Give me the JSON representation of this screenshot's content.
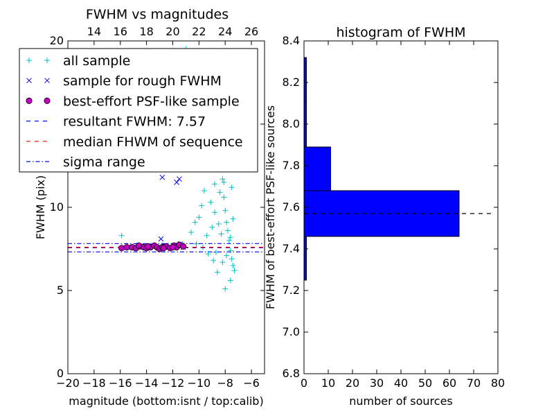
{
  "chart_data": [
    {
      "type": "scatter",
      "title": "FWHM vs magnitudes",
      "xlabel": "magnitude (bottom:isnt / top:calib)",
      "ylabel": "FWHM (pix)",
      "xlim": [
        -20,
        -5
      ],
      "ylim": [
        0,
        20
      ],
      "x_ticks": [
        "−20",
        "−18",
        "−16",
        "−14",
        "−12",
        "−10",
        "−8",
        "−6"
      ],
      "x_tick_values": [
        -20,
        -18,
        -16,
        -14,
        -12,
        -10,
        -8,
        -6
      ],
      "top_ticks": [
        "14",
        "16",
        "18",
        "20",
        "22",
        "24",
        "26"
      ],
      "top_tick_values": [
        14,
        16,
        18,
        20,
        22,
        24,
        26
      ],
      "top_axis_offset": 32,
      "y_ticks": [
        "0",
        "5",
        "10",
        "15",
        "20"
      ],
      "y_tick_values": [
        0,
        5,
        10,
        15,
        20
      ],
      "legend": {
        "placement": "top-left",
        "entries": [
          {
            "label": "all sample",
            "marker": "+",
            "color": "#00bfbf"
          },
          {
            "label": "sample for rough FWHM",
            "marker": "x",
            "color": "#0000ff"
          },
          {
            "label": "best-effort PSF-like sample",
            "marker": "o",
            "color": "#bf00bf"
          },
          {
            "label": "resultant FWHM: 7.57",
            "marker": "dashed",
            "color": "#0000ff"
          },
          {
            "label": "median FHWM of sequence",
            "marker": "dashed",
            "color": "#ff0000"
          },
          {
            "label": "sigma range",
            "marker": "dashdot",
            "color": "#0000ff"
          }
        ]
      },
      "series": [
        {
          "name": "all sample",
          "color": "#00bfbf",
          "points": [
            [
              -15.9,
              8.3
            ],
            [
              -11.2,
              7.7
            ],
            [
              -10.6,
              8.5
            ],
            [
              -10.3,
              9.1
            ],
            [
              -10.0,
              9.4
            ],
            [
              -9.8,
              10.1
            ],
            [
              -9.6,
              11.0
            ],
            [
              -9.5,
              12.4
            ],
            [
              -9.3,
              13.2
            ],
            [
              -9.2,
              14.1
            ],
            [
              -9.0,
              15.3
            ],
            [
              -8.9,
              16.8
            ],
            [
              -8.8,
              18.2
            ],
            [
              -8.7,
              19.4
            ],
            [
              -8.6,
              17.1
            ],
            [
              -8.5,
              15.6
            ],
            [
              -8.4,
              14.2
            ],
            [
              -8.3,
              12.9
            ],
            [
              -8.2,
              11.7
            ],
            [
              -8.1,
              10.6
            ],
            [
              -8.0,
              9.8
            ],
            [
              -7.9,
              9.1
            ],
            [
              -7.8,
              8.6
            ],
            [
              -7.7,
              8.0
            ],
            [
              -7.6,
              7.4
            ],
            [
              -7.5,
              6.9
            ],
            [
              -7.4,
              6.5
            ],
            [
              -7.3,
              6.2
            ],
            [
              -8.0,
              5.1
            ],
            [
              -7.6,
              5.6
            ],
            [
              -8.6,
              6.1
            ],
            [
              -8.9,
              6.8
            ],
            [
              -9.3,
              7.2
            ],
            [
              -9.7,
              7.6
            ],
            [
              -10.2,
              7.8
            ],
            [
              -8.3,
              8.4
            ],
            [
              -8.5,
              9.0
            ],
            [
              -8.8,
              9.7
            ],
            [
              -9.1,
              10.3
            ],
            [
              -8.4,
              10.9
            ],
            [
              -8.1,
              11.5
            ],
            [
              -7.9,
              12.3
            ],
            [
              -8.2,
              13.5
            ],
            [
              -8.0,
              14.6
            ],
            [
              -7.8,
              15.8
            ],
            [
              -8.3,
              16.4
            ],
            [
              -8.6,
              18.9
            ],
            [
              -11.0,
              19.5
            ],
            [
              -9.9,
              19.0
            ],
            [
              -8.1,
              17.5
            ],
            [
              -7.7,
              13.9
            ],
            [
              -7.5,
              11.2
            ],
            [
              -7.4,
              9.3
            ],
            [
              -7.6,
              8.2
            ],
            [
              -7.9,
              7.1
            ],
            [
              -8.2,
              6.7
            ],
            [
              -8.7,
              7.3
            ],
            [
              -9.4,
              8.3
            ],
            [
              -9.0,
              8.8
            ],
            [
              -8.8,
              11.4
            ]
          ]
        },
        {
          "name": "sample for rough FWHM",
          "color": "#0000ff",
          "points": [
            [
              -15.1,
              7.6
            ],
            [
              -14.4,
              7.65
            ],
            [
              -13.8,
              7.6
            ],
            [
              -13.1,
              7.55
            ],
            [
              -12.9,
              8.1
            ],
            [
              -12.6,
              7.7
            ],
            [
              -12.3,
              7.6
            ],
            [
              -11.7,
              11.5
            ],
            [
              -11.5,
              11.7
            ],
            [
              -12.8,
              11.8
            ],
            [
              -11.9,
              7.7
            ],
            [
              -11.4,
              7.8
            ],
            [
              -11.2,
              7.6
            ],
            [
              -13.5,
              7.7
            ],
            [
              -14.8,
              7.55
            ]
          ]
        },
        {
          "name": "best-effort PSF-like sample",
          "color": "#bf00bf",
          "points": [
            [
              -15.9,
              7.55
            ],
            [
              -15.5,
              7.6
            ],
            [
              -15.1,
              7.6
            ],
            [
              -14.8,
              7.55
            ],
            [
              -14.5,
              7.65
            ],
            [
              -14.2,
              7.6
            ],
            [
              -14.0,
              7.55
            ],
            [
              -13.7,
              7.6
            ],
            [
              -13.4,
              7.7
            ],
            [
              -13.2,
              7.6
            ],
            [
              -13.0,
              7.5
            ],
            [
              -12.8,
              7.6
            ],
            [
              -12.5,
              7.65
            ],
            [
              -12.2,
              7.55
            ],
            [
              -11.9,
              7.7
            ],
            [
              -11.7,
              7.6
            ],
            [
              -11.5,
              7.75
            ],
            [
              -11.2,
              7.65
            ],
            [
              -14.6,
              7.7
            ],
            [
              -13.9,
              7.65
            ],
            [
              -12.7,
              7.55
            ],
            [
              -12.0,
              7.6
            ]
          ]
        }
      ],
      "lines": [
        {
          "name": "resultant FWHM: 7.57",
          "y": 7.57,
          "color": "#0000ff",
          "style": "dashed"
        },
        {
          "name": "median FHWM of sequence",
          "y": 7.6,
          "color": "#ff0000",
          "style": "dashed"
        },
        {
          "name": "sigma range",
          "y": 7.82,
          "color": "#0000ff",
          "style": "dashdot"
        },
        {
          "name": "sigma range",
          "y": 7.32,
          "color": "#0000ff",
          "style": "dashdot"
        }
      ]
    },
    {
      "type": "bar",
      "orientation": "horizontal",
      "title": "histogram of FWHM",
      "xlabel": "number of sources",
      "ylabel": "FWHM of best-effort PSF-like sources",
      "xlim": [
        0,
        80
      ],
      "ylim": [
        6.8,
        8.4
      ],
      "x_ticks": [
        "0",
        "10",
        "20",
        "30",
        "40",
        "50",
        "60",
        "70",
        "80"
      ],
      "x_tick_values": [
        0,
        10,
        20,
        30,
        40,
        50,
        60,
        70,
        80
      ],
      "y_ticks": [
        "6.8",
        "7.0",
        "7.2",
        "7.4",
        "7.6",
        "7.8",
        "8.0",
        "8.2",
        "8.4"
      ],
      "y_tick_values": [
        6.8,
        7.0,
        7.2,
        7.4,
        7.6,
        7.8,
        8.0,
        8.2,
        8.4
      ],
      "bar_color": "#0000ff",
      "bins": [
        {
          "y0": 7.25,
          "y1": 7.46,
          "count": 1
        },
        {
          "y0": 7.46,
          "y1": 7.68,
          "count": 64
        },
        {
          "y0": 7.68,
          "y1": 7.89,
          "count": 11
        },
        {
          "y0": 7.89,
          "y1": 8.11,
          "count": 1
        },
        {
          "y0": 8.11,
          "y1": 8.32,
          "count": 1
        }
      ],
      "reference_line": {
        "y": 7.57,
        "color": "#000000",
        "style": "dashed"
      }
    }
  ]
}
